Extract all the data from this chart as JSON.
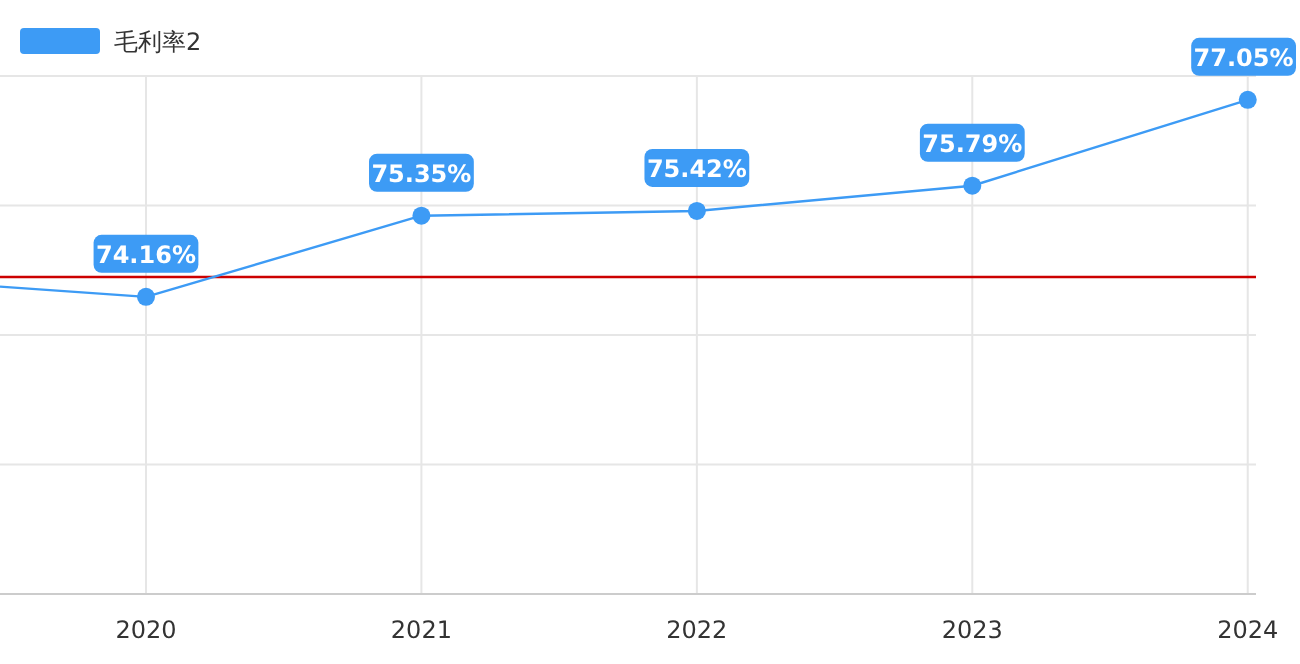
{
  "chart_data": {
    "type": "line",
    "x": [
      2019.47,
      2020,
      2021,
      2022,
      2023,
      2024
    ],
    "xlim": [
      2019.47,
      2024.03
    ],
    "xticks": [
      2020,
      2021,
      2022,
      2023,
      2024
    ],
    "ylim": [
      69.8,
      77.4
    ],
    "yticks": [
      {
        "value": 71.7,
        "label": null
      },
      {
        "value": 73.6,
        "label": null
      },
      {
        "value": 75.5,
        "label": null
      },
      {
        "value": 77.4,
        "label": null
      }
    ],
    "tick_labels": "x",
    "grid": true,
    "legend": "top left",
    "marker": "circle",
    "series": [
      {
        "name": "毛利率2",
        "color": "#3d9bf5",
        "values": [
          74.31,
          74.16,
          75.35,
          75.42,
          75.79,
          77.05
        ],
        "value_labels": [
          null,
          "74.16%",
          "75.35%",
          "75.42%",
          "75.79%",
          "77.05%"
        ]
      }
    ],
    "ref_lines": [
      {
        "axis": "y",
        "value": 74.45,
        "color": "#cc0000"
      }
    ]
  }
}
